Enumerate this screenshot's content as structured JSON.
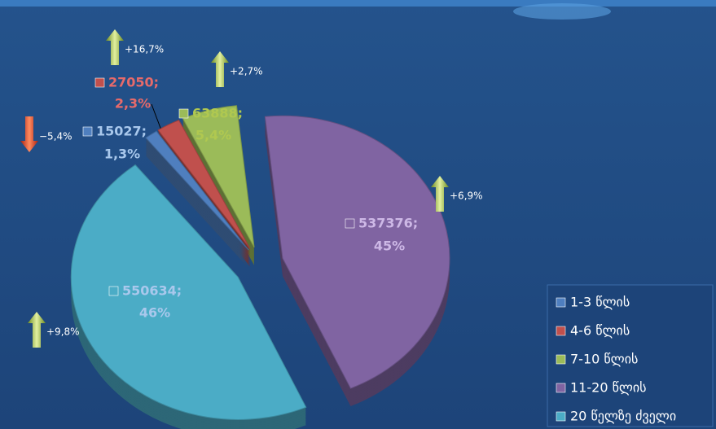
{
  "chart_data": {
    "type": "pie",
    "categories": [
      "1-3 წლის",
      "4-6 წლის",
      "7-10 წლის",
      "11-20 წლის",
      "20 წელზე ძველი"
    ],
    "values": [
      15027,
      27050,
      63888,
      537376,
      550634
    ],
    "value_labels": [
      "15027;",
      "27050;",
      "63888;",
      "537376;",
      "550634;"
    ],
    "percent_labels": [
      "1,3%",
      "2,3%",
      "5,4%",
      "45%",
      "46%"
    ],
    "colors": [
      "#4f7fbf",
      "#c0504d",
      "#9bbb59",
      "#8064a2",
      "#4bacc6"
    ],
    "changes": [
      {
        "label": "−5,4%",
        "direction": "down"
      },
      {
        "label": "+16,7%",
        "direction": "up"
      },
      {
        "label": "+2,7%",
        "direction": "up"
      },
      {
        "label": "+6,9%",
        "direction": "up"
      },
      {
        "label": "+9,8%",
        "direction": "up"
      }
    ],
    "legend": "bottom-right"
  }
}
